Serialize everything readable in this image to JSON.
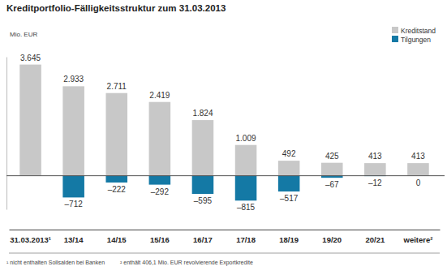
{
  "chart_data": {
    "type": "bar",
    "title": "Kreditportfolio-Fälligkeitsstruktur zum 31.03.2013",
    "ylabel": "Mio. EUR",
    "categories": [
      "31.03.2013¹",
      "13/14",
      "14/15",
      "15/16",
      "16/17",
      "17/18",
      "18/19",
      "19/20",
      "20/21",
      "weitere²"
    ],
    "series": [
      {
        "name": "Kreditstand",
        "color": "#c8c8c8",
        "values": [
          3645,
          2933,
          2711,
          2419,
          1824,
          1009,
          492,
          425,
          413,
          413
        ],
        "value_labels": [
          "3.645",
          "2.933",
          "2.711",
          "2.419",
          "1.824",
          "1.009",
          "492",
          "425",
          "413",
          "413"
        ]
      },
      {
        "name": "Tilgungen",
        "color": "#1479a5",
        "values": [
          null,
          -712,
          -222,
          -292,
          -595,
          -815,
          -517,
          -67,
          -12,
          0
        ],
        "value_labels": [
          null,
          "–712",
          "–222",
          "–292",
          "–595",
          "–815",
          "–517",
          "–67",
          "–12",
          "0"
        ]
      }
    ],
    "ylim": [
      -1100,
      3900
    ],
    "yticks": [
      0
    ],
    "grid": true,
    "legend": "top-right",
    "data_labels": true,
    "tick_labels": "x",
    "annotations": [
      "¹ nicht enthalten Sollsalden bei Banken",
      "² enthält 406,1 Mio. EUR revolvierende Exportkredite"
    ]
  }
}
